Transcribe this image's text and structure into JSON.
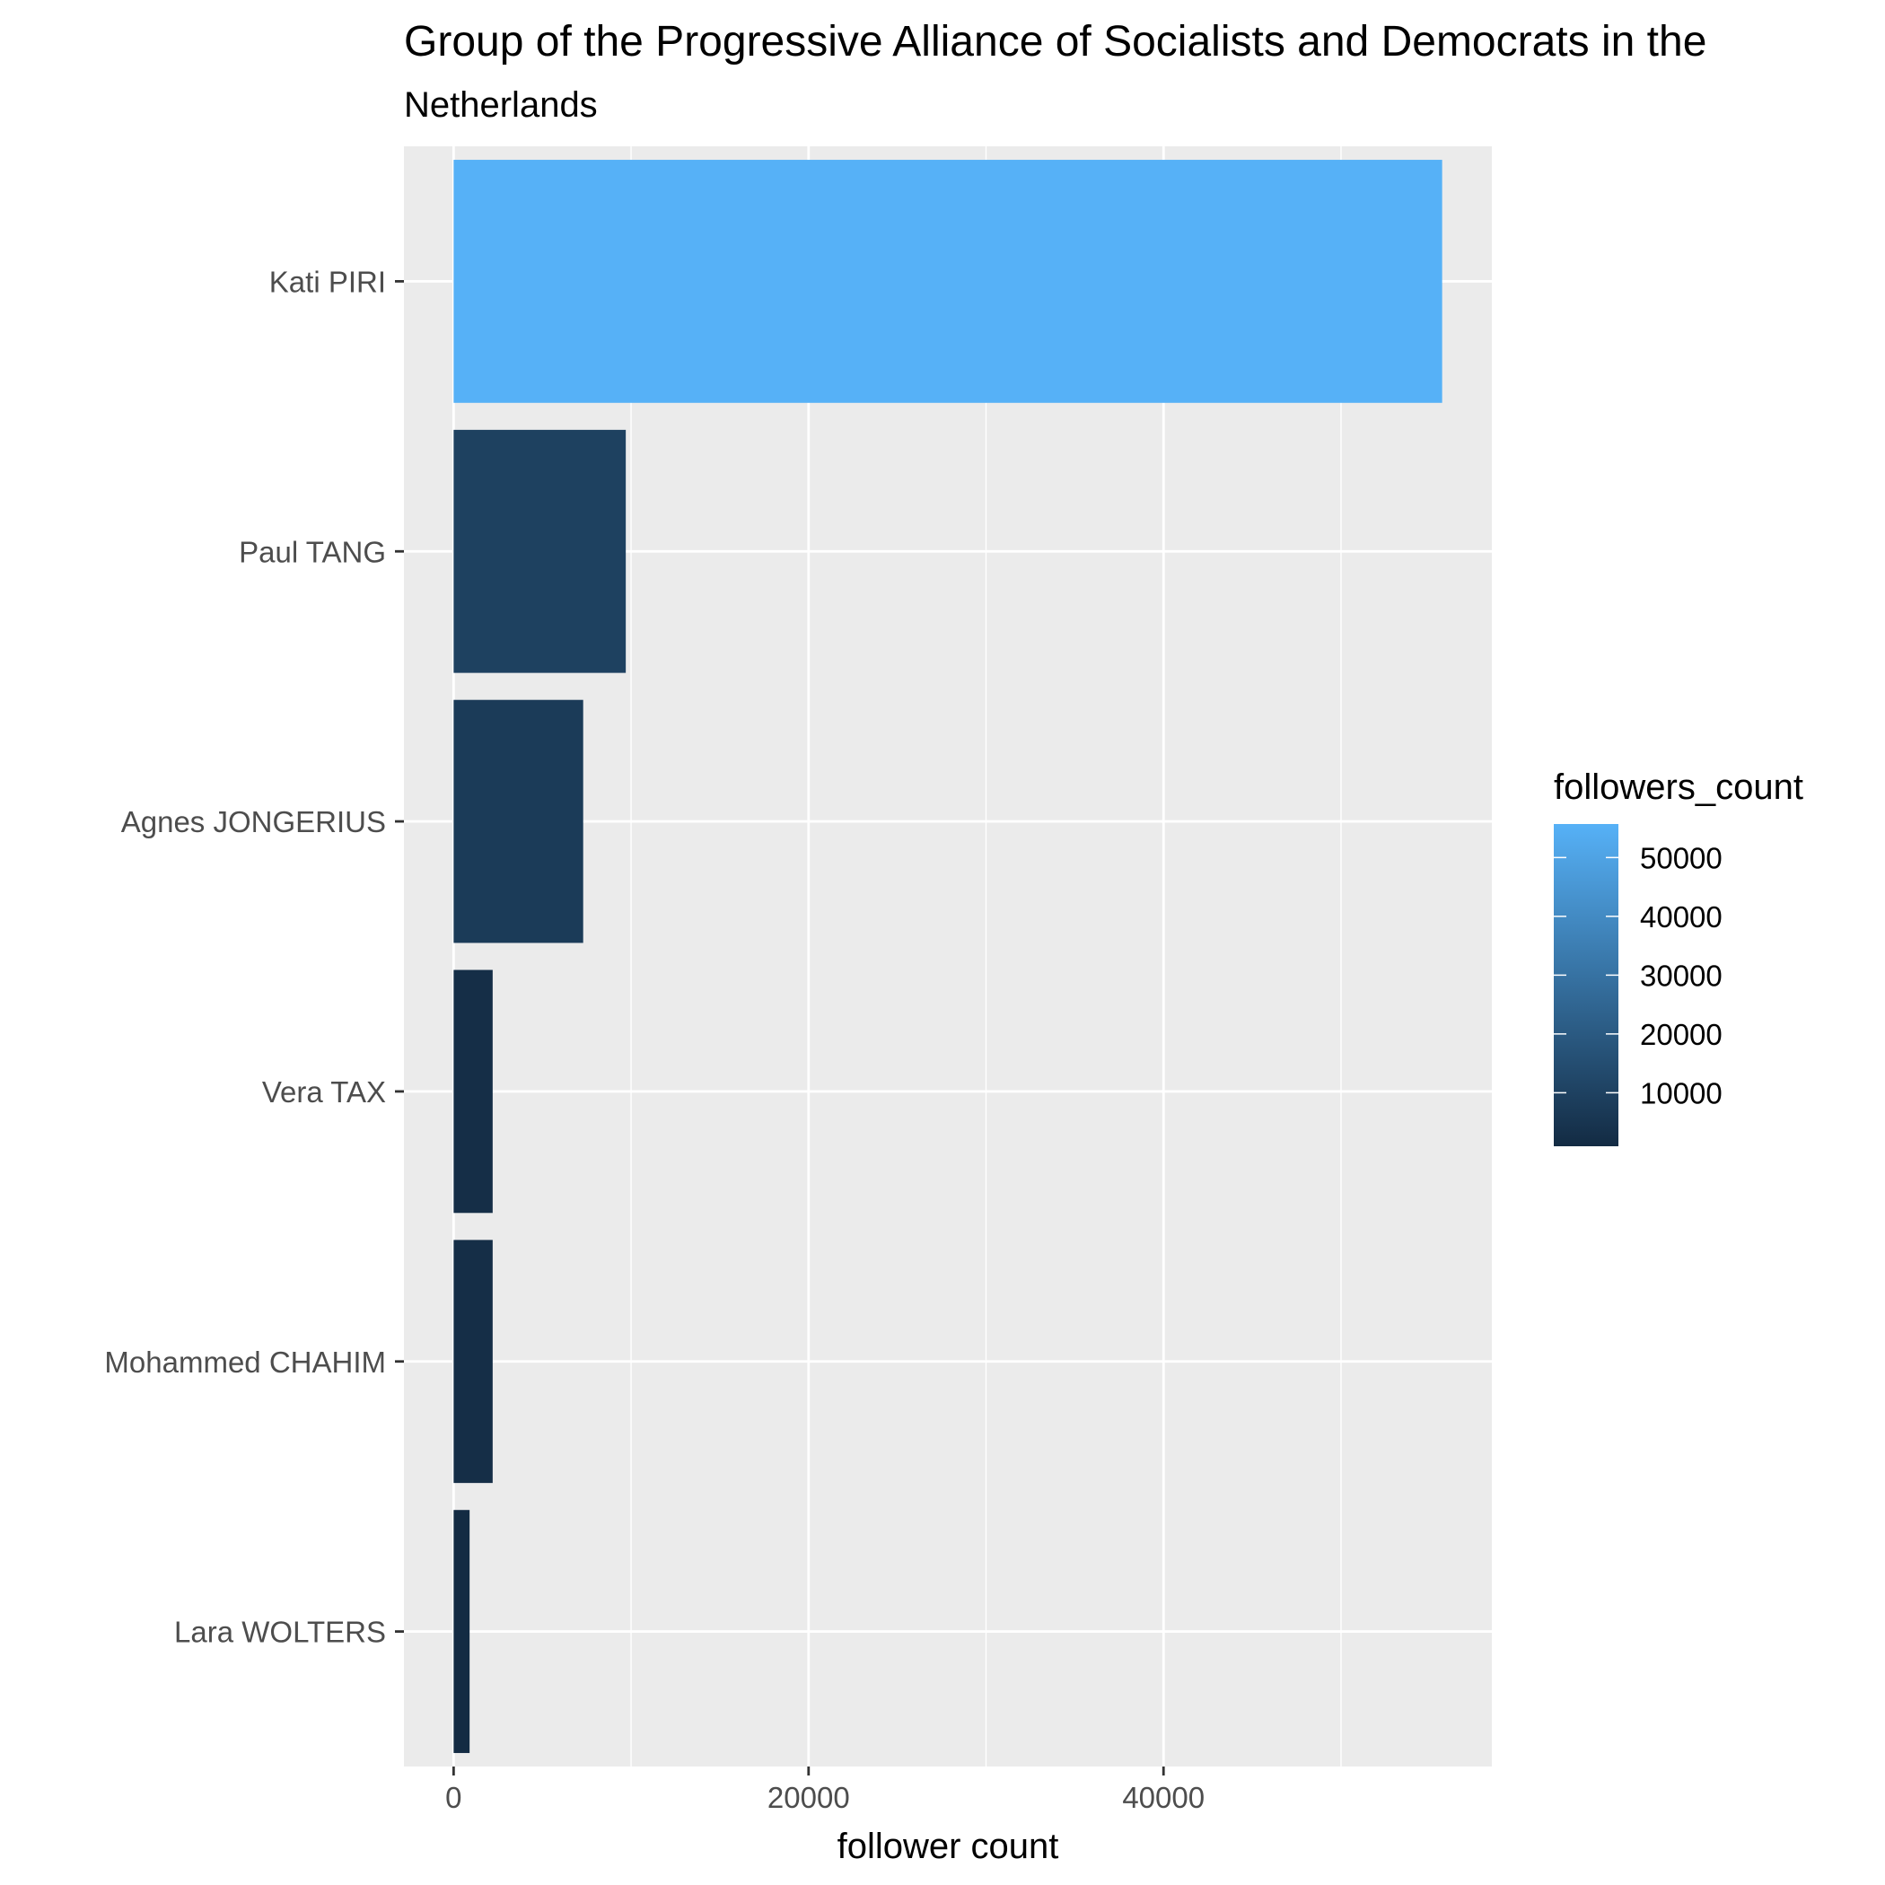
{
  "chart_data": {
    "type": "bar",
    "orientation": "horizontal",
    "title": "Group of the Progressive Alliance of Socialists and Democrats in the",
    "subtitle": "Netherlands",
    "xlabel": "follower count",
    "ylabel": "",
    "categories": [
      "Kati PIRI",
      "Paul TANG",
      "Agnes JONGERIUS",
      "Vera TAX",
      "Mohammed CHAHIM",
      "Lara WOLTERS"
    ],
    "values": [
      55700,
      9700,
      7300,
      2200,
      2200,
      900
    ],
    "xlim": [
      -2800,
      58500
    ],
    "x_ticks": [
      0,
      20000,
      40000
    ],
    "x_tick_labels": [
      "0",
      "20000",
      "40000"
    ],
    "grid": true,
    "legend": {
      "title": "followers_count",
      "placement": "right",
      "type": "colorbar",
      "range": [
        900,
        55700
      ],
      "ticks": [
        10000,
        20000,
        30000,
        40000,
        50000
      ],
      "tick_labels": [
        "10000",
        "20000",
        "30000",
        "40000",
        "50000"
      ],
      "color_low": "#132b43",
      "color_high": "#56b1f7"
    },
    "panel_background": "#ebebeb",
    "grid_color": "#ffffff"
  }
}
